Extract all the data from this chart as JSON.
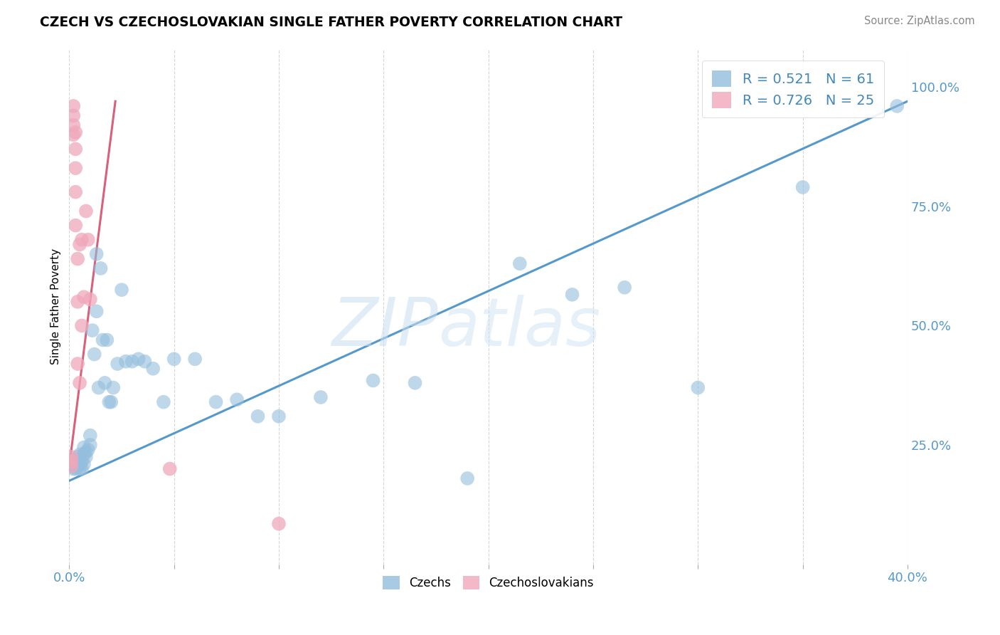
{
  "title": "CZECH VS CZECHOSLOVAKIAN SINGLE FATHER POVERTY CORRELATION CHART",
  "source": "Source: ZipAtlas.com",
  "ylabel": "Single Father Poverty",
  "xlim": [
    0.0,
    0.4
  ],
  "ylim": [
    0.0,
    1.08
  ],
  "xticks": [
    0.0,
    0.05,
    0.1,
    0.15,
    0.2,
    0.25,
    0.3,
    0.35,
    0.4
  ],
  "xticklabels": [
    "0.0%",
    "",
    "",
    "",
    "",
    "",
    "",
    "",
    "40.0%"
  ],
  "yticks_right": [
    0.25,
    0.5,
    0.75,
    1.0
  ],
  "ytickslabels_right": [
    "25.0%",
    "50.0%",
    "75.0%",
    "100.0%"
  ],
  "blue_color": "#93bedd",
  "pink_color": "#f0a8bb",
  "blue_line_color": "#5599cc",
  "pink_line_color": "#d9607a",
  "blue_scatter_x": [
    0.001,
    0.001,
    0.002,
    0.002,
    0.002,
    0.003,
    0.003,
    0.003,
    0.003,
    0.004,
    0.004,
    0.004,
    0.005,
    0.005,
    0.005,
    0.006,
    0.006,
    0.007,
    0.007,
    0.007,
    0.008,
    0.008,
    0.009,
    0.01,
    0.01,
    0.011,
    0.012,
    0.013,
    0.013,
    0.014,
    0.015,
    0.016,
    0.017,
    0.018,
    0.019,
    0.02,
    0.021,
    0.023,
    0.025,
    0.027,
    0.03,
    0.033,
    0.036,
    0.04,
    0.045,
    0.05,
    0.06,
    0.07,
    0.08,
    0.09,
    0.1,
    0.12,
    0.145,
    0.165,
    0.19,
    0.215,
    0.24,
    0.265,
    0.3,
    0.35,
    0.395
  ],
  "blue_scatter_y": [
    0.205,
    0.215,
    0.2,
    0.205,
    0.215,
    0.2,
    0.21,
    0.215,
    0.22,
    0.205,
    0.215,
    0.225,
    0.2,
    0.21,
    0.23,
    0.2,
    0.215,
    0.21,
    0.23,
    0.245,
    0.225,
    0.235,
    0.24,
    0.25,
    0.27,
    0.49,
    0.44,
    0.65,
    0.53,
    0.37,
    0.62,
    0.47,
    0.38,
    0.47,
    0.34,
    0.34,
    0.37,
    0.42,
    0.575,
    0.425,
    0.425,
    0.43,
    0.425,
    0.41,
    0.34,
    0.43,
    0.43,
    0.34,
    0.345,
    0.31,
    0.31,
    0.35,
    0.385,
    0.38,
    0.18,
    0.63,
    0.565,
    0.58,
    0.37,
    0.79,
    0.96
  ],
  "pink_scatter_x": [
    0.001,
    0.001,
    0.001,
    0.002,
    0.002,
    0.002,
    0.002,
    0.003,
    0.003,
    0.003,
    0.003,
    0.003,
    0.004,
    0.004,
    0.004,
    0.005,
    0.005,
    0.006,
    0.006,
    0.007,
    0.008,
    0.009,
    0.01,
    0.048,
    0.1
  ],
  "pink_scatter_y": [
    0.205,
    0.215,
    0.225,
    0.9,
    0.92,
    0.94,
    0.96,
    0.83,
    0.87,
    0.905,
    0.78,
    0.71,
    0.42,
    0.55,
    0.64,
    0.38,
    0.67,
    0.5,
    0.68,
    0.56,
    0.74,
    0.68,
    0.555,
    0.2,
    0.085
  ],
  "blue_line_x": [
    0.0,
    0.4
  ],
  "blue_line_y": [
    0.175,
    0.97
  ],
  "pink_line_x": [
    0.0,
    0.022
  ],
  "pink_line_y": [
    0.205,
    0.97
  ]
}
